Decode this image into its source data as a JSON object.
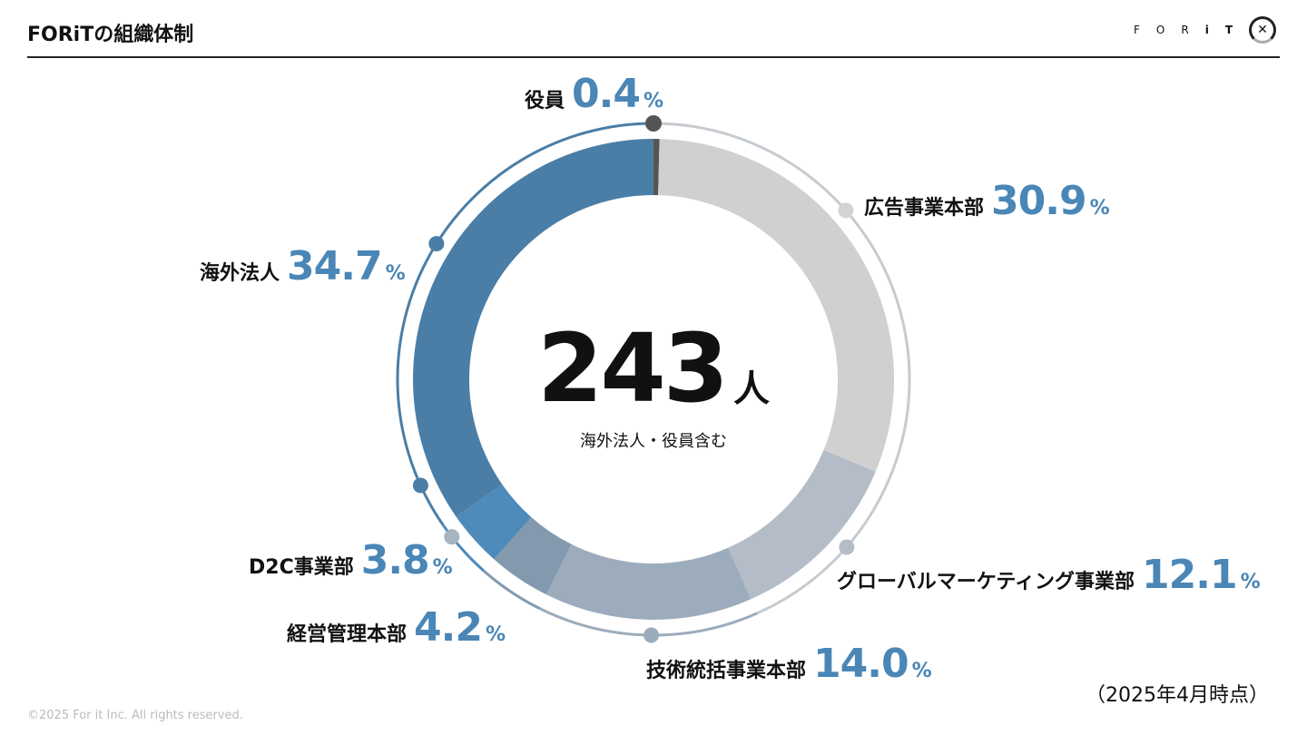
{
  "header": {
    "title": "FORiTの組織体制",
    "logo_letters": [
      "F",
      "O",
      "R",
      "i",
      "T"
    ],
    "logo_mark": "✕"
  },
  "center": {
    "total": "243",
    "unit": "人",
    "note": "海外法人・役員含む"
  },
  "as_of": "（2025年4月時点）",
  "footer": "©2025 For it Inc. All rights reserved.",
  "chart_data": {
    "type": "pie",
    "subtype": "donut",
    "title": "FORiTの組織体制",
    "total": 243,
    "unit": "%",
    "segments": [
      {
        "name": "役員",
        "value": 0.4,
        "color": "#555555"
      },
      {
        "name": "広告事業本部",
        "value": 30.9,
        "color": "#d0d0d0"
      },
      {
        "name": "グローバルマーケティング事業部",
        "value": 12.1,
        "color": "#b4bdc7"
      },
      {
        "name": "技術統括事業本部",
        "value": 14.0,
        "color": "#9cacbc"
      },
      {
        "name": "経営管理本部",
        "value": 4.2,
        "color": "#8399ae"
      },
      {
        "name": "D2C事業部",
        "value": 3.8,
        "color": "#4e8aba"
      },
      {
        "name": "海外法人",
        "value": 34.7,
        "color": "#4a7ea6"
      }
    ],
    "value_labels": [
      "0.4",
      "30.9",
      "12.1",
      "14.0",
      "4.2",
      "3.8",
      "34.7"
    ],
    "pct_sign": "%"
  }
}
